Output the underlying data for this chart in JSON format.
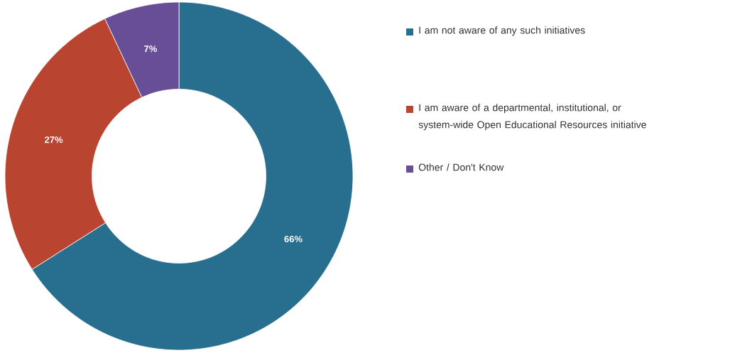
{
  "chart_data": {
    "type": "donut",
    "categories": [
      "I am not aware of any such initiatives",
      "I am aware of a departmental, institutional, or system-wide Open Educational Resources initiative",
      "Other / Don't Know"
    ],
    "values": [
      66,
      27,
      7
    ],
    "colors": [
      "#286e8f",
      "#b94430",
      "#674e97"
    ],
    "value_labels": [
      "66%",
      "27%",
      "7%"
    ],
    "legend": "right"
  }
}
